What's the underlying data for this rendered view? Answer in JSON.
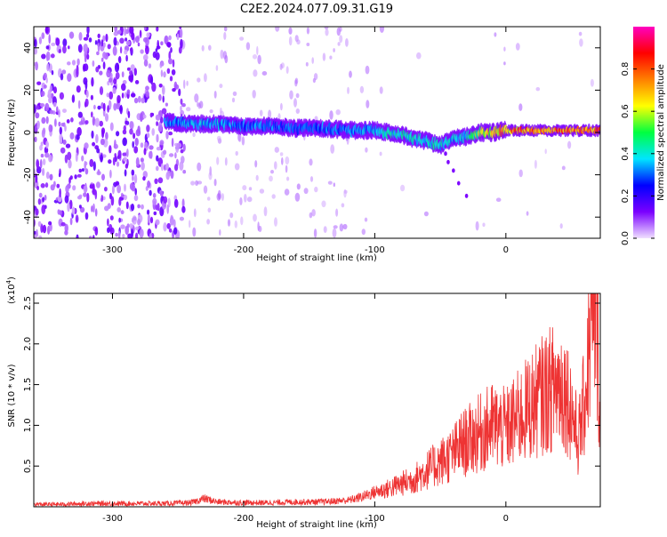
{
  "title": "C2E2.2024.077.09.31.G19",
  "chart_data": [
    {
      "type": "heatmap",
      "xlabel": "Height of straight line (km)",
      "ylabel": "Frequency (Hz)",
      "xlim": [
        -360,
        72
      ],
      "ylim": [
        -50,
        50
      ],
      "x_ticks": [
        -300,
        -200,
        -100,
        0
      ],
      "x_tick_labels": [
        "-300",
        "-200",
        "-100",
        "0"
      ],
      "y_ticks": [
        -40,
        -20,
        0,
        20,
        40
      ],
      "y_tick_labels": [
        "-40",
        "-20",
        "0",
        "20",
        "40"
      ],
      "colorbar": {
        "label": "Normalized spectral amplitude",
        "range": [
          0,
          1
        ],
        "ticks": [
          0.0,
          0.2,
          0.4,
          0.6,
          0.8
        ],
        "tick_labels": [
          "0.0",
          "0.2",
          "0.4",
          "0.6",
          "0.8"
        ],
        "colors": [
          "#f0e0ff",
          "#7a00ff",
          "#0000ff",
          "#00e5ff",
          "#00ff40",
          "#ffff00",
          "#ff8000",
          "#ff0000",
          "#ff00c0"
        ]
      },
      "ridge": [
        {
          "x": -260,
          "y": 5,
          "amp": 0.35
        },
        {
          "x": -240,
          "y": 4,
          "amp": 0.4
        },
        {
          "x": -220,
          "y": 4,
          "amp": 0.4
        },
        {
          "x": -200,
          "y": 3,
          "amp": 0.35
        },
        {
          "x": -180,
          "y": 3,
          "amp": 0.35
        },
        {
          "x": -160,
          "y": 2,
          "amp": 0.35
        },
        {
          "x": -140,
          "y": 2,
          "amp": 0.35
        },
        {
          "x": -120,
          "y": 1,
          "amp": 0.35
        },
        {
          "x": -100,
          "y": 1,
          "amp": 0.4
        },
        {
          "x": -90,
          "y": 0,
          "amp": 0.45
        },
        {
          "x": -80,
          "y": -1,
          "amp": 0.45
        },
        {
          "x": -70,
          "y": -3,
          "amp": 0.45
        },
        {
          "x": -60,
          "y": -4,
          "amp": 0.45
        },
        {
          "x": -50,
          "y": -6,
          "amp": 0.45
        },
        {
          "x": -40,
          "y": -3,
          "amp": 0.4
        },
        {
          "x": -30,
          "y": -2,
          "amp": 0.45
        },
        {
          "x": -20,
          "y": 0,
          "amp": 0.6
        },
        {
          "x": -10,
          "y": 0,
          "amp": 0.75
        },
        {
          "x": 0,
          "y": 1,
          "amp": 0.8
        },
        {
          "x": 20,
          "y": 1,
          "amp": 0.85
        },
        {
          "x": 40,
          "y": 1,
          "amp": 0.85
        },
        {
          "x": 60,
          "y": 1,
          "amp": 0.85
        },
        {
          "x": 72,
          "y": 1,
          "amp": 0.85
        }
      ]
    },
    {
      "type": "line",
      "xlabel": "Height of straight line (km)",
      "ylabel": "SNR (10 * v/v)",
      "y_multiplier_label": "(x10",
      "y_multiplier_exp": "4",
      "y_multiplier_close": ")",
      "xlim": [
        -360,
        72
      ],
      "ylim": [
        0,
        2.62
      ],
      "x_ticks": [
        -300,
        -200,
        -100,
        0
      ],
      "x_tick_labels": [
        "-300",
        "-200",
        "-100",
        "0"
      ],
      "y_ticks": [
        0.5,
        1.0,
        1.5,
        2.0,
        2.5
      ],
      "y_tick_labels": [
        "0.5",
        "1.0",
        "1.5",
        "2.0",
        "2.5"
      ],
      "line_color": "#ee3333",
      "series": [
        {
          "x": [
            -360,
            -340,
            -320,
            -300,
            -280,
            -260,
            -240,
            -230,
            -220,
            -200,
            -180,
            -160,
            -140,
            -120,
            -110,
            -100,
            -90,
            -80,
            -70,
            -60,
            -50,
            -40,
            -35,
            -30,
            -20,
            -10,
            0,
            10,
            20,
            30,
            40,
            45,
            50,
            55,
            60,
            65,
            68,
            72
          ],
          "y": [
            0.03,
            0.03,
            0.04,
            0.04,
            0.04,
            0.04,
            0.05,
            0.1,
            0.06,
            0.05,
            0.05,
            0.06,
            0.06,
            0.08,
            0.12,
            0.18,
            0.22,
            0.28,
            0.34,
            0.45,
            0.55,
            0.65,
            0.75,
            0.8,
            0.9,
            1.0,
            0.95,
            1.1,
            1.25,
            1.4,
            1.5,
            1.45,
            1.2,
            0.8,
            1.3,
            2.2,
            2.5,
            1.3
          ]
        }
      ]
    }
  ]
}
